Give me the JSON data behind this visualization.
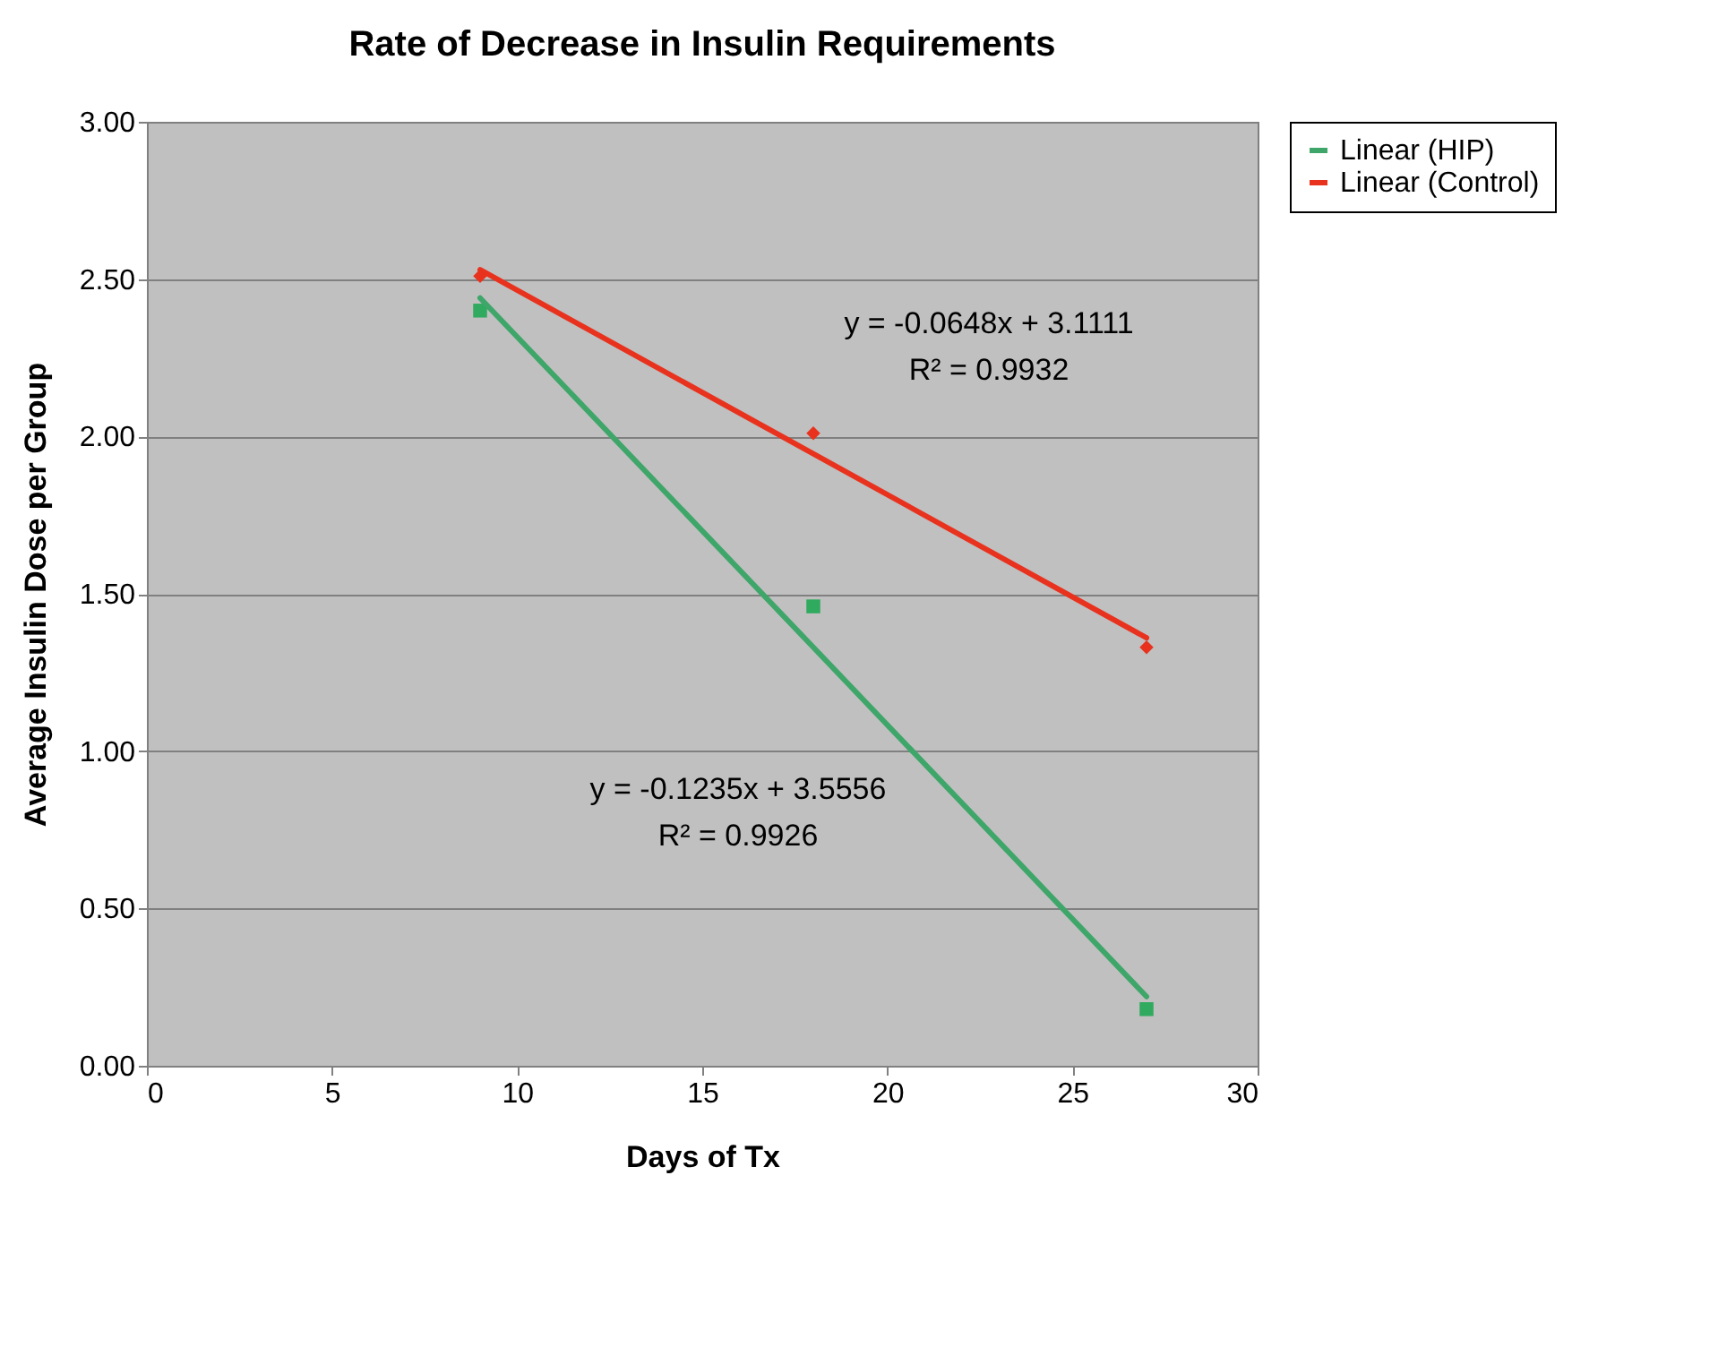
{
  "chart_data": {
    "type": "scatter",
    "title": "Rate of Decrease in Insulin Requirements",
    "xlabel": "Days of Tx",
    "ylabel": "Average Insulin Dose per Group",
    "series": [
      {
        "marker": "square",
        "color": "#2faa5f",
        "x": [
          9,
          18,
          27
        ],
        "values": [
          2.4,
          1.46,
          0.18
        ]
      },
      {
        "marker": "diamond",
        "color": "#e8321e",
        "x": [
          9,
          18,
          27
        ],
        "values": [
          2.51,
          2.01,
          1.33
        ]
      },
      {
        "type": "line",
        "name": "Linear (HIP)",
        "color": "#3fa66a",
        "x": [
          9,
          27
        ],
        "values": [
          2.44,
          0.22
        ]
      },
      {
        "type": "line",
        "name": "Linear (Control)",
        "color": "#e8321e",
        "x": [
          9,
          27
        ],
        "values": [
          2.53,
          1.36
        ]
      }
    ],
    "annotations": [
      "y = -0.0648x + 3.1111\nR² = 0.9932",
      "y = -0.1235x + 3.5556\nR² = 0.9926"
    ],
    "xlim": [
      0,
      30
    ],
    "xticks": [
      0,
      5,
      10,
      15,
      20,
      25,
      30
    ],
    "ylim": [
      0,
      3
    ],
    "yticks": [
      {
        "value": 0,
        "label": "0.00"
      },
      {
        "value": 0.5,
        "label": "0.50"
      },
      {
        "value": 1,
        "label": "1.00"
      },
      {
        "value": 1.5,
        "label": "1.50"
      },
      {
        "value": 2,
        "label": "2.00"
      },
      {
        "value": 2.5,
        "label": "2.50"
      },
      {
        "value": 3,
        "label": "3.00"
      }
    ],
    "grid": "y",
    "legend": "right"
  }
}
